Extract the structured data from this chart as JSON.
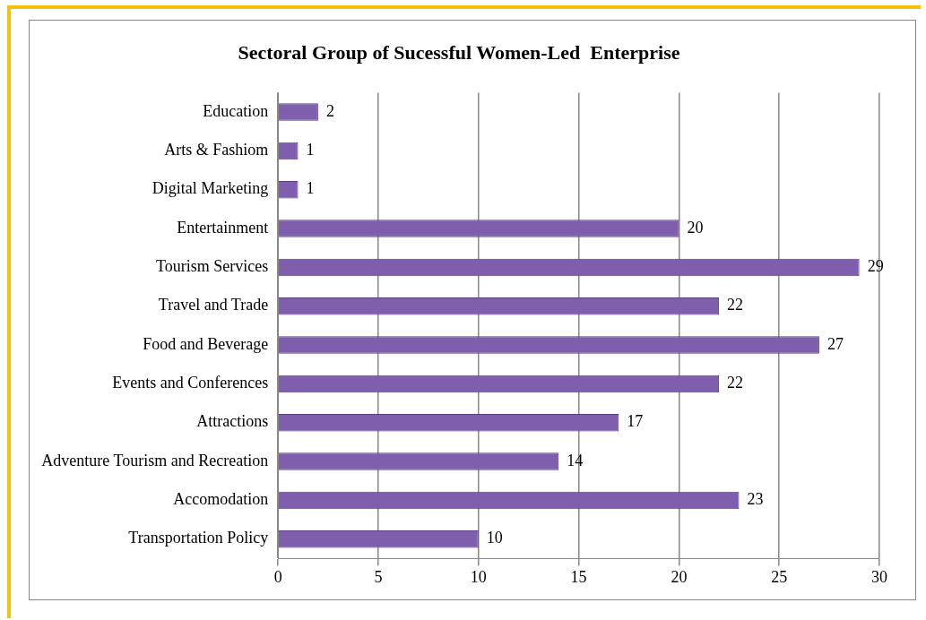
{
  "chart_data": {
    "type": "bar",
    "orientation": "horizontal",
    "title": "Sectoral Group of Sucessful Women-Led  Enterprise",
    "categories": [
      "Education",
      "Arts & Fashiom",
      "Digital Marketing",
      "Entertainment",
      "Tourism Services",
      "Travel and Trade",
      "Food and Beverage",
      "Events and Conferences",
      "Attractions",
      "Adventure Tourism and Recreation",
      "Accomodation",
      "Transportation Policy"
    ],
    "values": [
      2,
      1,
      1,
      20,
      29,
      22,
      27,
      22,
      17,
      14,
      23,
      10
    ],
    "color": "#7f5fad",
    "xlim": [
      0,
      30
    ],
    "xticks": [
      0,
      5,
      10,
      15,
      20,
      25,
      30
    ],
    "grid": "x",
    "legend": false,
    "data_labels": true
  }
}
